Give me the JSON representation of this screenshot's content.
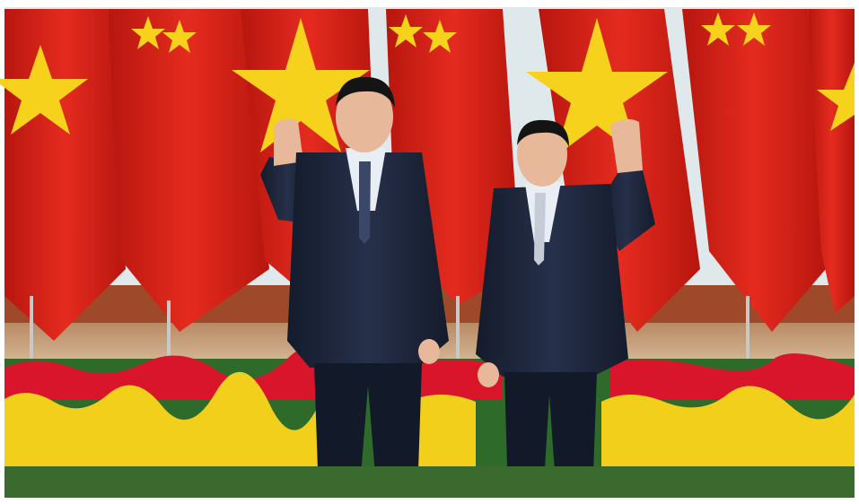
{
  "scene": {
    "subject": "two-men-waving-in-front-of-flags",
    "colors": {
      "frame": "#ffffff",
      "backdrop": "#dfe8ea",
      "red_flag": "#d8231c",
      "red_flag_shadow": "#a8170f",
      "yellow_star": "#f7d21c",
      "wood_panel": "#9e4a2a",
      "marble": "#c9a98a",
      "suit": "#1c2538",
      "suit_shadow": "#121929",
      "skin": "#e8b89a",
      "shirt": "#e9eef4",
      "red_flowers": "#d8152a",
      "yellow_flowers": "#f2cf1a",
      "leaves": "#2e6a2a"
    }
  }
}
